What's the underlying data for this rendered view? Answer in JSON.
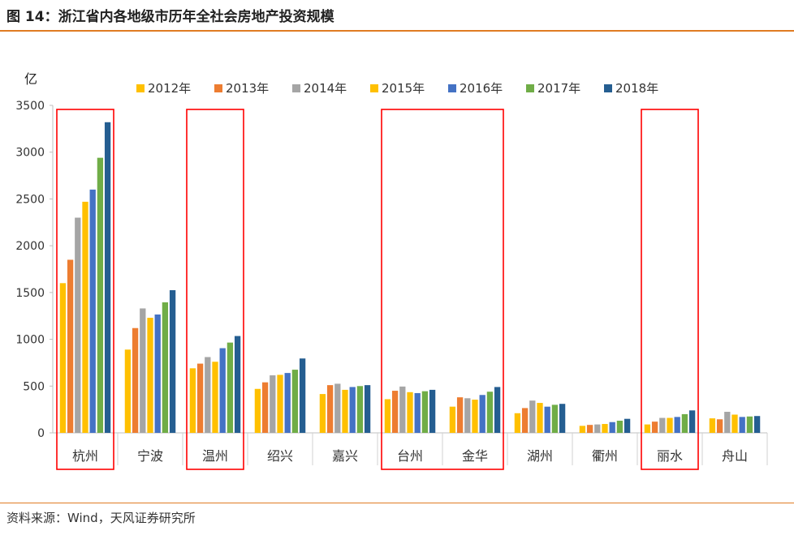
{
  "figure": {
    "title": "图 14：浙江省内各地级市历年全社会房地产投资规模",
    "source": "资料来源：Wind，天风证券研究所"
  },
  "chart_data": {
    "type": "bar",
    "unit_label": "亿",
    "categories": [
      "杭州",
      "宁波",
      "温州",
      "绍兴",
      "嘉兴",
      "台州",
      "金华",
      "湖州",
      "衢州",
      "丽水",
      "舟山"
    ],
    "series": [
      {
        "name": "2012年",
        "color": "#ffc000",
        "values": [
          1600,
          890,
          690,
          470,
          415,
          360,
          280,
          210,
          75,
          90,
          155
        ]
      },
      {
        "name": "2013年",
        "color": "#ed7d31",
        "values": [
          1850,
          1120,
          740,
          540,
          510,
          450,
          380,
          265,
          85,
          120,
          145
        ]
      },
      {
        "name": "2014年",
        "color": "#a5a5a5",
        "values": [
          2300,
          1330,
          810,
          615,
          525,
          495,
          370,
          345,
          90,
          160,
          225
        ]
      },
      {
        "name": "2015年",
        "color": "#ffc000",
        "values": [
          2470,
          1230,
          760,
          620,
          460,
          435,
          355,
          320,
          95,
          160,
          195
        ]
      },
      {
        "name": "2016年",
        "color": "#4472c4",
        "values": [
          2600,
          1265,
          905,
          640,
          490,
          425,
          405,
          280,
          115,
          170,
          170
        ]
      },
      {
        "name": "2017年",
        "color": "#70ad47",
        "values": [
          2940,
          1395,
          965,
          675,
          500,
          445,
          440,
          300,
          130,
          200,
          175
        ]
      },
      {
        "name": "2018年",
        "color": "#255e91",
        "values": [
          3320,
          1525,
          1035,
          795,
          510,
          460,
          490,
          310,
          150,
          240,
          180
        ]
      }
    ],
    "ylim": [
      0,
      3500
    ],
    "yticks": [
      0,
      500,
      1000,
      1500,
      2000,
      2500,
      3000,
      3500
    ],
    "highlighted_categories": [
      [
        "杭州"
      ],
      [
        "温州"
      ],
      [
        "台州",
        "金华"
      ],
      [
        "丽水"
      ]
    ],
    "highlight_color": "#ff0000",
    "legend_position": "top",
    "grid": false
  }
}
